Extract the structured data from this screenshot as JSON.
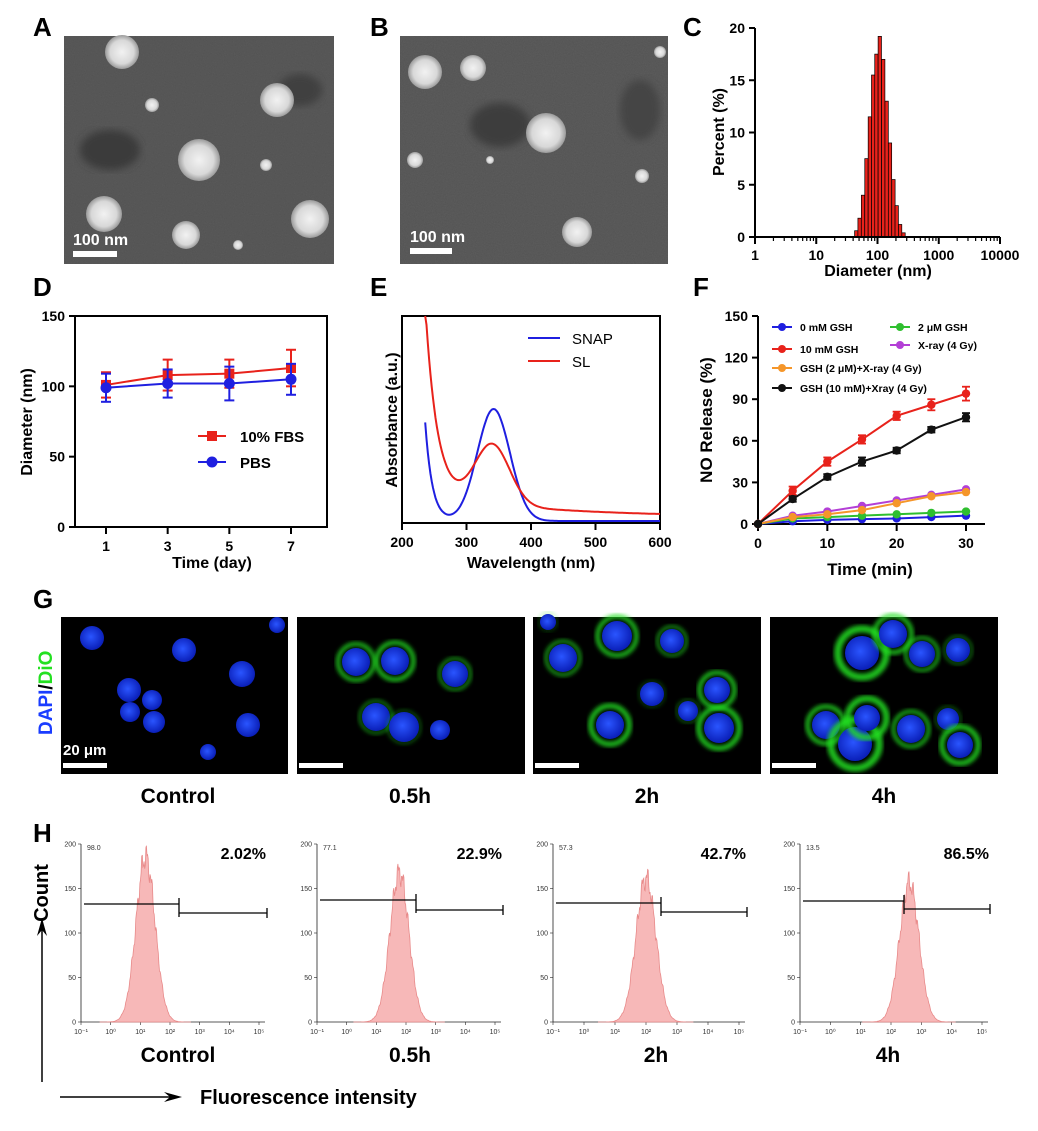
{
  "panels": {
    "A": {
      "label": "A",
      "scale_bar": "100 nm"
    },
    "B": {
      "label": "B",
      "scale_bar": "100 nm"
    },
    "C": {
      "label": "C",
      "ylabel": "Percent (%)",
      "xlabel": "Diameter (nm)",
      "yticks": [
        "0",
        "5",
        "10",
        "15",
        "20"
      ],
      "xticks": [
        "1",
        "10",
        "100",
        "1000",
        "10000"
      ]
    },
    "D": {
      "label": "D",
      "ylabel": "Diameter (nm)",
      "xlabel": "Time (day)",
      "yticks": [
        "0",
        "50",
        "100",
        "150"
      ],
      "xticks": [
        "1",
        "3",
        "5",
        "7"
      ],
      "legend": [
        "10% FBS",
        "PBS"
      ]
    },
    "E": {
      "label": "E",
      "ylabel": "Absorbance (a.u.)",
      "xlabel": "Wavelength (nm)",
      "xticks": [
        "200",
        "300",
        "400",
        "500",
        "600"
      ],
      "legend": [
        "SNAP",
        "SL"
      ]
    },
    "F": {
      "label": "F",
      "ylabel": "NO Release (%)",
      "xlabel": "Time (min)",
      "yticks": [
        "0",
        "30",
        "60",
        "90",
        "120",
        "150"
      ],
      "xticks": [
        "0",
        "10",
        "20",
        "30"
      ],
      "legend": [
        "0 mM GSH",
        "2 μM GSH",
        "10 mM GSH",
        "X-ray (4 Gy)",
        "GSH (2 μM)+X-ray (4 Gy)",
        "GSH (10 mM)+Xray (4 Gy)"
      ]
    },
    "G": {
      "label": "G",
      "stain_dapi": "DAPI",
      "stain_sep": "/",
      "stain_dio": "DiO",
      "scale_bar": "20 μm",
      "captions": [
        "Control",
        "0.5h",
        "2h",
        "4h"
      ]
    },
    "H": {
      "label": "H",
      "ylabel": "Count",
      "xlabel": "Fluorescence intensity",
      "captions": [
        "Control",
        "0.5h",
        "2h",
        "4h"
      ],
      "percent": [
        "2.02%",
        "22.9%",
        "42.7%",
        "86.5%"
      ],
      "left_gate": [
        "98.0",
        "77.1",
        "57.3",
        "13.5"
      ],
      "yticks": [
        "0",
        "50",
        "100",
        "150",
        "200"
      ],
      "xticks": [
        "10⁻¹",
        "10⁰",
        "10¹",
        "10²",
        "10³",
        "10⁴",
        "10⁵"
      ]
    }
  },
  "colors": {
    "red": "#e8221b",
    "blue": "#1f1fe0",
    "green": "#2fbf2f",
    "orange": "#f5962a",
    "purple": "#b33fd6",
    "black": "#111111",
    "dapi": "#1a3cff",
    "dio": "#23e020",
    "hist_fill": "#f7b8b8",
    "hist_stroke": "#e88a8a"
  },
  "chart_data": [
    {
      "panel": "C",
      "type": "bar",
      "xscale": "log",
      "xlim": [
        1,
        10000
      ],
      "ylim": [
        0,
        20
      ],
      "x": [
        45,
        51,
        58,
        66,
        75,
        85,
        96,
        109,
        124,
        141,
        160,
        182,
        206,
        234,
        266
      ],
      "values": [
        0.6,
        1.8,
        4.0,
        7.5,
        11.5,
        15.5,
        17.5,
        19.2,
        17.0,
        13.0,
        9.0,
        5.5,
        3.0,
        1.2,
        0.4
      ]
    },
    {
      "panel": "D",
      "type": "line",
      "ylim": [
        0,
        150
      ],
      "x": [
        1,
        3,
        5,
        7
      ],
      "series": [
        {
          "name": "10% FBS",
          "values": [
            101,
            108,
            109,
            113
          ],
          "err": [
            9,
            11,
            10,
            13
          ]
        },
        {
          "name": "PBS",
          "values": [
            99,
            102,
            102,
            105
          ],
          "err": [
            10,
            10,
            12,
            11
          ]
        }
      ]
    },
    {
      "panel": "E",
      "type": "line",
      "xlim": [
        200,
        600
      ],
      "series": [
        {
          "name": "SNAP"
        },
        {
          "name": "SL"
        }
      ]
    },
    {
      "panel": "F",
      "type": "line",
      "ylim": [
        0,
        150
      ],
      "x": [
        0,
        5,
        10,
        15,
        20,
        25,
        30
      ],
      "series": [
        {
          "name": "0 mM GSH",
          "values": [
            0,
            2,
            3,
            3.5,
            4,
            5,
            6
          ]
        },
        {
          "name": "2 μM GSH",
          "values": [
            0,
            4,
            5,
            6,
            7,
            8,
            9
          ]
        },
        {
          "name": "10 mM GSH",
          "values": [
            0,
            24,
            45,
            61,
            78,
            86,
            94
          ],
          "err": [
            2,
            3,
            3,
            3,
            3,
            4,
            5
          ]
        },
        {
          "name": "X-ray (4 Gy)",
          "values": [
            0,
            6,
            9,
            13,
            17,
            21,
            25
          ]
        },
        {
          "name": "GSH (2 μM)+X-ray (4 Gy)",
          "values": [
            0,
            5,
            7,
            10,
            15,
            20,
            23
          ]
        },
        {
          "name": "GSH (10 mM)+Xray (4 Gy)",
          "values": [
            0,
            18,
            34,
            45,
            53,
            68,
            77
          ],
          "err": [
            1,
            2,
            2,
            3,
            2,
            2,
            3
          ]
        }
      ]
    },
    {
      "panel": "H",
      "type": "area",
      "xscale": "log",
      "ylim": [
        0,
        200
      ],
      "series": [
        {
          "name": "Control",
          "peak": 15,
          "percent": 2.02
        },
        {
          "name": "0.5h",
          "peak": 60,
          "percent": 22.9
        },
        {
          "name": "2h",
          "peak": 100,
          "percent": 42.7
        },
        {
          "name": "4h",
          "peak": 400,
          "percent": 86.5
        }
      ]
    }
  ]
}
